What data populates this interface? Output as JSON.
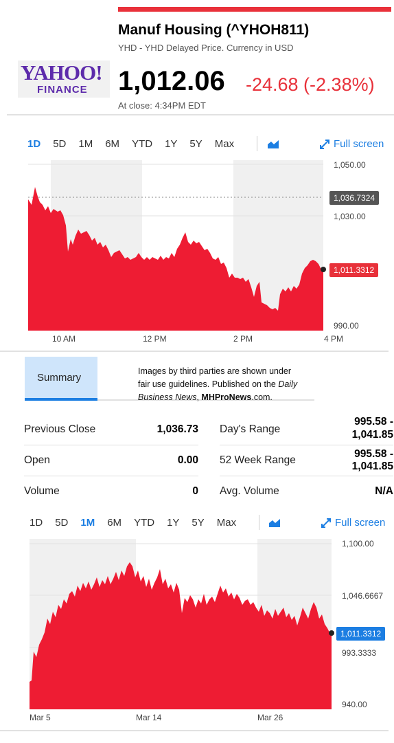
{
  "header": {
    "logo_word": "YAHOO!",
    "logo_sub": "FINANCE",
    "title": "Manuf Housing (^YHOH811)",
    "subtitle": "YHD - YHD Delayed Price. Currency in USD",
    "price": "1,012.06",
    "change": "-24.68 (-2.38%)",
    "close_time": "At close: 4:34PM EDT"
  },
  "chart1": {
    "tabs": [
      "1D",
      "5D",
      "1M",
      "6M",
      "YTD",
      "1Y",
      "5Y",
      "Max"
    ],
    "active_tab": "1D",
    "fullscreen_label": "Full screen",
    "y_ticks": [
      "1,050.00",
      "1,030.00",
      "990.00"
    ],
    "x_ticks": [
      "10 AM",
      "12 PM",
      "2 PM",
      "4 PM"
    ],
    "prev_close_tag": "1,036.7324",
    "last_tag": "1,011.3312"
  },
  "summary": {
    "tab_label": "Summary",
    "note_line1": "Images by third parties are shown under",
    "note_line2": "fair use guidelines.  Published on the",
    "note_line2b": "Daily",
    "note_line3a": "Business News",
    "note_line3b": "MHProNews",
    "note_line3c": ".com.",
    "rows_left": [
      {
        "label": "Previous Close",
        "value": "1,036.73"
      },
      {
        "label": "Open",
        "value": "0.00"
      },
      {
        "label": "Volume",
        "value": "0"
      }
    ],
    "rows_right": [
      {
        "label": "Day's Range",
        "value1": "995.58 -",
        "value2": "1,041.85"
      },
      {
        "label": "52 Week Range",
        "value1": "995.58 -",
        "value2": "1,041.85"
      },
      {
        "label": "Avg. Volume",
        "value1": "N/A",
        "value2": ""
      }
    ]
  },
  "chart2": {
    "tabs": [
      "1D",
      "5D",
      "1M",
      "6M",
      "YTD",
      "1Y",
      "5Y",
      "Max"
    ],
    "active_tab": "1M",
    "fullscreen_label": "Full screen",
    "y_ticks": [
      "1,100.00",
      "1,046.6667",
      "993.3333",
      "940.00"
    ],
    "x_ticks": [
      "Mar 5",
      "Mar 14",
      "Mar 26"
    ],
    "last_tag": "1,011.3312"
  },
  "colors": {
    "accent": "#1c7ee2",
    "down": "#e8313a",
    "area": "#ee1c33"
  }
}
